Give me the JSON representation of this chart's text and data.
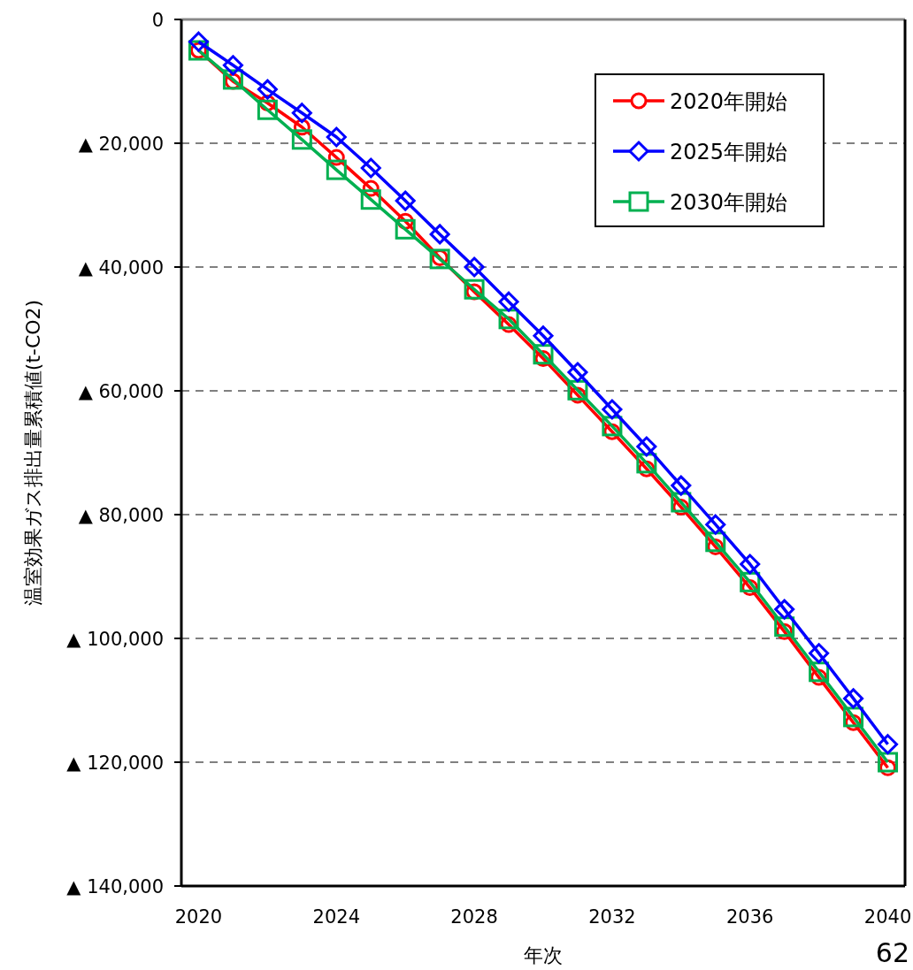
{
  "chart_data": {
    "type": "line",
    "xlabel": "年次",
    "ylabel": "温室効果ガス排出量累積値(t-CO2)",
    "x": [
      2020,
      2021,
      2022,
      2023,
      2024,
      2025,
      2026,
      2027,
      2028,
      2029,
      2030,
      2031,
      2032,
      2033,
      2034,
      2035,
      2036,
      2037,
      2038,
      2039,
      2040
    ],
    "xlim": [
      2019.5,
      2040.5
    ],
    "xticks": [
      2020,
      2024,
      2028,
      2032,
      2036,
      2040
    ],
    "ylim": [
      -140000,
      0
    ],
    "yticks": [
      {
        "value": 0,
        "label": "0"
      },
      {
        "value": -20000,
        "label": "▲ 20,000"
      },
      {
        "value": -40000,
        "label": "▲ 40,000"
      },
      {
        "value": -60000,
        "label": "▲ 60,000"
      },
      {
        "value": -80000,
        "label": "▲ 80,000"
      },
      {
        "value": -100000,
        "label": "▲ 100,000"
      },
      {
        "value": -120000,
        "label": "▲ 120,000"
      },
      {
        "value": -140000,
        "label": "▲ 140,000"
      }
    ],
    "grid": "y",
    "legend": "top right",
    "line_style": "solid",
    "annotations": [
      "62"
    ],
    "series": [
      {
        "name": "2020年開始",
        "color": "#ff0000",
        "marker": "circle",
        "values": [
          -5000,
          -10000,
          -13500,
          -17400,
          -22300,
          -27300,
          -32600,
          -38500,
          -44000,
          -49300,
          -54800,
          -60700,
          -66600,
          -72600,
          -78800,
          -85200,
          -91800,
          -98900,
          -106300,
          -113600,
          -120900
        ]
      },
      {
        "name": "2025年開始",
        "color": "#0000ff",
        "marker": "diamond",
        "values": [
          -3600,
          -7400,
          -11300,
          -15100,
          -19000,
          -24000,
          -29300,
          -34700,
          -40000,
          -45600,
          -51100,
          -57000,
          -63000,
          -69000,
          -75300,
          -81600,
          -88000,
          -95300,
          -102400,
          -109700,
          -117100
        ]
      },
      {
        "name": "2030年開始",
        "color": "#00b050",
        "marker": "square",
        "values": [
          -5000,
          -9700,
          -14600,
          -19400,
          -24300,
          -29100,
          -33900,
          -38700,
          -43600,
          -48400,
          -54100,
          -59900,
          -65700,
          -71700,
          -78000,
          -84400,
          -90900,
          -98100,
          -105400,
          -112700,
          -120000
        ]
      }
    ]
  }
}
